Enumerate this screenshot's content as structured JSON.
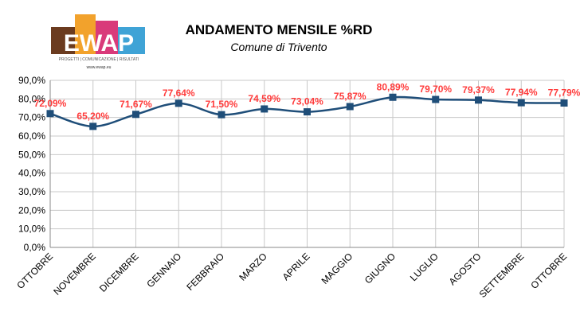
{
  "logo": {
    "letters": "EWAP",
    "tagline": "PROGETTI | COMUNICAZIONE | RISULTATI",
    "url": "www.ewap.eu"
  },
  "colors": {
    "line": "#1f4e79",
    "marker": "#1f4e79",
    "data_label": "#ff3c3c",
    "grid": "#c8c8c8",
    "axis": "#888888"
  },
  "chart_data": {
    "type": "line",
    "title": "ANDAMENTO MENSILE %RD",
    "subtitle": "Comune di Trivento",
    "categories": [
      "OTTOBRE",
      "NOVEMBRE",
      "DICEMBRE",
      "GENNAIO",
      "FEBBRAIO",
      "MARZO",
      "APRILE",
      "MAGGIO",
      "GIUGNO",
      "LUGLIO",
      "AGOSTO",
      "SETTEMBRE",
      "OTTOBRE"
    ],
    "series": [
      {
        "values": [
          72.09,
          65.2,
          71.67,
          77.64,
          71.5,
          74.59,
          73.04,
          75.87,
          80.89,
          79.7,
          79.37,
          77.94,
          77.79
        ],
        "labels": [
          "72,09%",
          "65,20%",
          "71,67%",
          "77,64%",
          "71,50%",
          "74,59%",
          "73,04%",
          "75,87%",
          "80,89%",
          "79,70%",
          "79,37%",
          "77,94%",
          "77,79%"
        ]
      }
    ],
    "ylim": [
      0,
      90
    ],
    "yticks": [
      0,
      10,
      20,
      30,
      40,
      50,
      60,
      70,
      80,
      90
    ],
    "ytick_labels": [
      "0,0%",
      "10,0%",
      "20,0%",
      "30,0%",
      "40,0%",
      "50,0%",
      "60,0%",
      "70,0%",
      "80,0%",
      "90,0%"
    ],
    "grid": true,
    "legend": "none"
  }
}
